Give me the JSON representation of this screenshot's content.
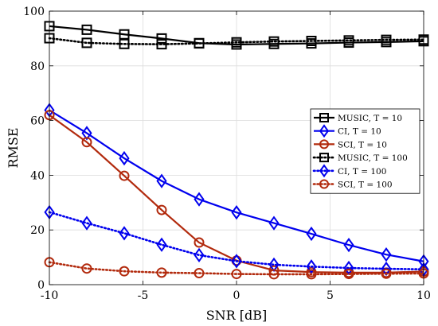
{
  "chart_data": {
    "type": "line",
    "xlabel": "SNR [dB]",
    "ylabel": "RMSE",
    "xlim": [
      -10,
      10
    ],
    "ylim": [
      0,
      100
    ],
    "xticks": [
      -10,
      -5,
      0,
      5,
      10
    ],
    "yticks": [
      0,
      20,
      40,
      60,
      80,
      100
    ],
    "grid": true,
    "legend_position": "center-right",
    "x": [
      -10,
      -8,
      -6,
      -4,
      -2,
      0,
      2,
      4,
      6,
      8,
      10
    ],
    "series": [
      {
        "name": "MUSIC, T = 10",
        "color": "#000000",
        "linestyle": "solid",
        "marker": "square",
        "values": [
          94.5,
          93.2,
          91.5,
          90.0,
          88.3,
          87.8,
          88.0,
          88.2,
          88.5,
          88.7,
          89.0
        ]
      },
      {
        "name": "CI, T = 10",
        "color": "#0000ee",
        "linestyle": "solid",
        "marker": "diamond",
        "values": [
          63.8,
          55.4,
          46.2,
          37.9,
          31.2,
          26.4,
          22.5,
          18.6,
          14.5,
          11.0,
          8.5
        ]
      },
      {
        "name": "SCI, T = 10",
        "color": "#b22a0d",
        "linestyle": "solid",
        "marker": "circle",
        "values": [
          62.0,
          52.1,
          39.8,
          27.3,
          15.4,
          8.8,
          5.2,
          4.6,
          4.4,
          4.4,
          4.8
        ]
      },
      {
        "name": "MUSIC, T = 100",
        "color": "#000000",
        "linestyle": "dotted",
        "marker": "square",
        "values": [
          90.1,
          88.4,
          88.0,
          87.9,
          88.2,
          88.6,
          88.9,
          89.1,
          89.3,
          89.5,
          89.6
        ]
      },
      {
        "name": "CI, T = 100",
        "color": "#0000ee",
        "linestyle": "dotted",
        "marker": "diamond",
        "values": [
          26.5,
          22.5,
          18.8,
          14.6,
          10.8,
          8.6,
          7.3,
          6.6,
          6.1,
          5.8,
          5.6
        ]
      },
      {
        "name": "SCI, T = 100",
        "color": "#b22a0d",
        "linestyle": "dotted",
        "marker": "circle",
        "values": [
          8.2,
          5.9,
          4.9,
          4.4,
          4.2,
          3.9,
          3.8,
          3.8,
          3.9,
          4.0,
          4.1
        ]
      }
    ]
  }
}
